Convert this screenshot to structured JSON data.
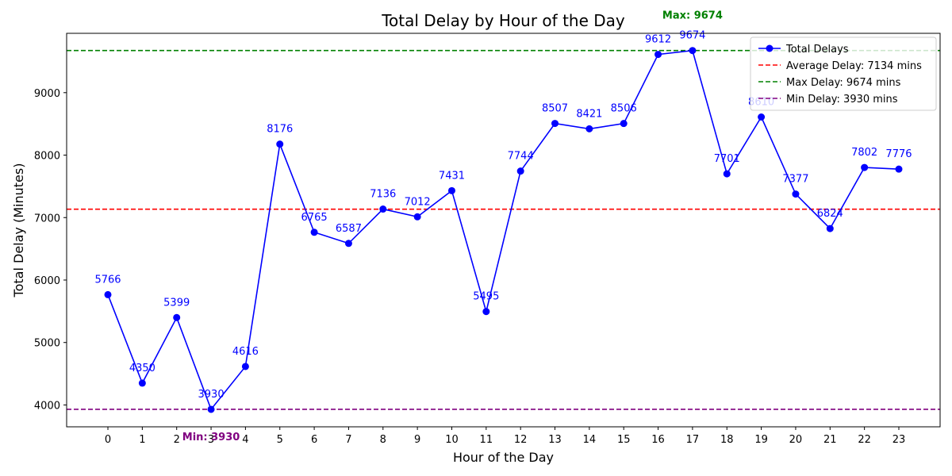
{
  "chart_data": {
    "type": "line",
    "title": "Total Delay by Hour of the Day",
    "xlabel": "Hour of the Day",
    "ylabel": "Total Delay (Minutes)",
    "x": [
      0,
      1,
      2,
      3,
      4,
      5,
      6,
      7,
      8,
      9,
      10,
      11,
      12,
      13,
      14,
      15,
      16,
      17,
      18,
      19,
      20,
      21,
      22,
      23
    ],
    "x_tick_labels": [
      "0",
      "1",
      "2",
      "3",
      "4",
      "5",
      "6",
      "7",
      "8",
      "9",
      "10",
      "11",
      "12",
      "13",
      "14",
      "15",
      "16",
      "17",
      "18",
      "19",
      "20",
      "21",
      "22",
      "23"
    ],
    "xlim": [
      -1.2,
      24.2
    ],
    "ylim": [
      3650,
      9950
    ],
    "y_ticks": [
      4000,
      5000,
      6000,
      7000,
      8000,
      9000
    ],
    "y_tick_labels": [
      "4000",
      "5000",
      "6000",
      "7000",
      "8000",
      "9000"
    ],
    "grid": false,
    "legend_position": "top-right",
    "series": [
      {
        "name": "Total Delays",
        "color": "#0000ff",
        "marker": "circle",
        "values": [
          5766,
          4350,
          5399,
          3930,
          4616,
          8176,
          6765,
          6587,
          7136,
          7012,
          7431,
          5495,
          7744,
          8507,
          8421,
          8506,
          9612,
          9674,
          7701,
          8610,
          7377,
          6824,
          7802,
          7776
        ],
        "value_labels": [
          "5766",
          "4350",
          "5399",
          "3930",
          "4616",
          "8176",
          "6765",
          "6587",
          "7136",
          "7012",
          "7431",
          "5495",
          "7744",
          "8507",
          "8421",
          "8506",
          "9612",
          "9674",
          "7701",
          "8610",
          "7377",
          "6824",
          "7802",
          "7776"
        ]
      }
    ],
    "reference_lines": [
      {
        "name": "Average Delay: 7134 mins",
        "value": 7134,
        "color": "#ff0000",
        "style": "dashed"
      },
      {
        "name": "Max Delay: 9674 mins",
        "value": 9674,
        "color": "#008000",
        "style": "dashed"
      },
      {
        "name": "Min Delay: 3930 mins",
        "value": 3930,
        "color": "#800080",
        "style": "dashed"
      }
    ],
    "annotations": [
      {
        "text": "Max: 9674",
        "x": 17,
        "y": 9674,
        "color": "#008000",
        "placement": "above"
      },
      {
        "text": "Min: 3930",
        "x": 3,
        "y": 3930,
        "color": "#800080",
        "placement": "below"
      }
    ]
  }
}
